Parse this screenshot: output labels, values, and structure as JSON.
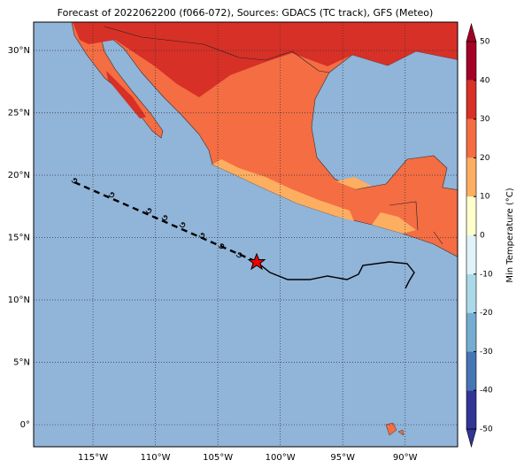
{
  "map": {
    "title": "Forecast of 2022062200 (f066-072), Sources: GDACS (TC track), GFS (Meteo)",
    "xlim": [
      -119.75,
      -85.8
    ],
    "ylim": [
      -1.77,
      32.27
    ],
    "lon_ticks": [
      {
        "value": -115,
        "label": "115°W"
      },
      {
        "value": -110,
        "label": "110°W"
      },
      {
        "value": -105,
        "label": "105°W"
      },
      {
        "value": -100,
        "label": "100°W"
      },
      {
        "value": -95,
        "label": "95°W"
      },
      {
        "value": -90,
        "label": "90°W"
      }
    ],
    "lat_ticks": [
      {
        "value": 30,
        "label": "30°N"
      },
      {
        "value": 25,
        "label": "25°N"
      },
      {
        "value": 20,
        "label": "20°N"
      },
      {
        "value": 15,
        "label": "15°N"
      },
      {
        "value": 10,
        "label": "10°N"
      },
      {
        "value": 5,
        "label": "5°N"
      },
      {
        "value": 0,
        "label": "0°"
      }
    ],
    "colorbar": {
      "label": "Min Temperature (°C)",
      "lim": [
        -50,
        50
      ],
      "ticks": [
        -50,
        -40,
        -30,
        -20,
        -10,
        0,
        10,
        20,
        30,
        40,
        50
      ],
      "colors": [
        "#313695",
        "#4575b4",
        "#74add1",
        "#abd9e9",
        "#e0f3f8",
        "#ffffcc",
        "#fdae61",
        "#f46d43",
        "#d73027",
        "#a50026"
      ]
    }
  }
}
